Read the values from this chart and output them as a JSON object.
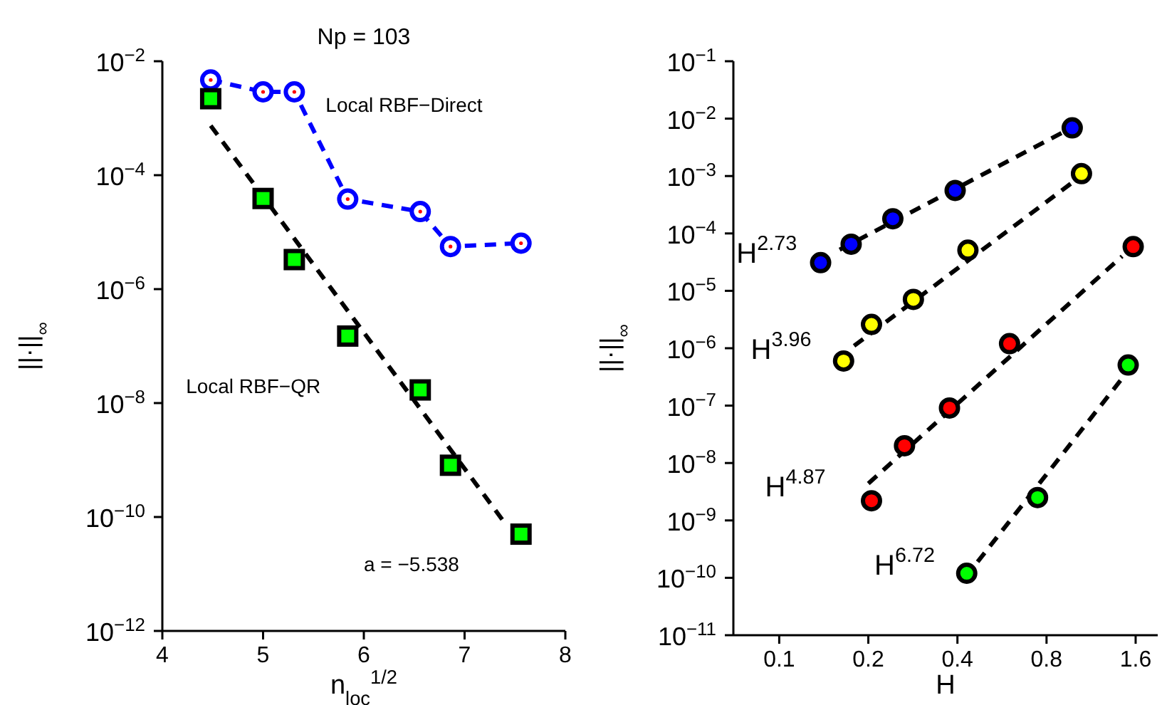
{
  "chart_data": [
    {
      "type": "line",
      "title": "Np = 103",
      "xlabel": "n$_{loc}$$^{1/2}$",
      "ylabel": "||·||$_{∞}$",
      "log": "y",
      "xlim": [
        4,
        8
      ],
      "xticks": [
        4,
        5,
        6,
        7,
        8
      ],
      "ylim": [
        1e-12,
        0.01
      ],
      "yticks": [
        {
          "value": 1e-12,
          "label": "10$^{−12}$"
        },
        {
          "value": 1e-10,
          "label": "10$^{−10}$"
        },
        {
          "value": 1e-08,
          "label": "10$^{−8}$"
        },
        {
          "value": 1e-06,
          "label": "10$^{−6}$"
        },
        {
          "value": 0.0001,
          "label": "10$^{−4}$"
        },
        {
          "value": 0.01,
          "label": "10$^{−2}$"
        }
      ],
      "series": [
        {
          "name": "Local RBF−Direct",
          "color": "#0000ff",
          "marker": "circle",
          "line_style": "dashed",
          "x": [
            4.48,
            5.0,
            5.31,
            5.84,
            6.56,
            6.86,
            7.56
          ],
          "values": [
            0.0047,
            0.0029,
            0.0029,
            3.8e-05,
            2.3e-05,
            5.6e-06,
            6.4e-06
          ]
        },
        {
          "name": "Local RBF−QR",
          "type": "scatter",
          "color": "#00ff00",
          "marker": "square",
          "x": [
            4.48,
            5.0,
            5.31,
            5.84,
            6.56,
            6.86,
            7.56
          ],
          "values": [
            0.0022,
            3.9e-05,
            3.3e-06,
            1.5e-07,
            1.7e-08,
            8.1e-10,
            5e-11
          ]
        },
        {
          "color": "#000000",
          "marker": "none",
          "line_style": "dashed",
          "x": [
            4.48,
            7.41
          ],
          "values": [
            0.00074,
            7.4e-11
          ]
        }
      ],
      "annotations": [
        "a = −5.538"
      ]
    },
    {
      "type": "scatter",
      "xlabel": "H",
      "ylabel": "||·||$_{∞}$",
      "log": "xy",
      "xlim": [
        0.07,
        1.9
      ],
      "xticks": [
        0.1,
        0.2,
        0.4,
        0.8,
        1.6
      ],
      "ylim": [
        1e-11,
        0.1
      ],
      "yticks": [
        {
          "value": 1e-11,
          "label": "10$^{−11}$"
        },
        {
          "value": 1e-10,
          "label": "10$^{−10}$"
        },
        {
          "value": 1e-09,
          "label": "10$^{−9}$"
        },
        {
          "value": 1e-08,
          "label": "10$^{−8}$"
        },
        {
          "value": 1e-07,
          "label": "10$^{−7}$"
        },
        {
          "value": 1e-06,
          "label": "10$^{−6}$"
        },
        {
          "value": 1e-05,
          "label": "10$^{−5}$"
        },
        {
          "value": 0.0001,
          "label": "10$^{−4}$"
        },
        {
          "value": 0.001,
          "label": "10$^{−3}$"
        },
        {
          "value": 0.01,
          "label": "10$^{−2}$"
        },
        {
          "value": 0.1,
          "label": "10$^{−1}$"
        }
      ],
      "series": [
        {
          "name": "H$^{2.73}$",
          "type": "line",
          "color": "#000000",
          "marker": "none",
          "line_style": "dashed",
          "x": [
            0.16,
            0.91
          ],
          "values": [
            5.2e-05,
            0.0058
          ]
        },
        {
          "name": "H$^{3.96}$",
          "type": "line",
          "color": "#000000",
          "marker": "none",
          "line_style": "dashed",
          "x": [
            0.179,
            0.977
          ],
          "values": [
            1.1e-06,
            0.00077
          ]
        },
        {
          "name": "H$^{4.87}$",
          "type": "line",
          "color": "#000000",
          "marker": "none",
          "line_style": "dashed",
          "x": [
            0.2,
            1.44
          ],
          "values": [
            4.4e-09,
            4e-05
          ]
        },
        {
          "name": "H$^{6.72}$",
          "type": "line",
          "color": "#000000",
          "marker": "none",
          "line_style": "dashed",
          "x": [
            0.468,
            1.47
          ],
          "values": [
            1.9e-10,
            3.4e-07
          ]
        },
        {
          "color": "#0000ff",
          "marker": "circle",
          "x": [
            0.138,
            0.175,
            0.242,
            0.393,
            0.977
          ],
          "values": [
            3.1e-05,
            6.5e-05,
            0.00018,
            0.00056,
            0.0069
          ]
        },
        {
          "color": "#ffff00",
          "marker": "circle",
          "x": [
            0.165,
            0.205,
            0.284,
            0.434,
            1.05
          ],
          "values": [
            6e-07,
            2.6e-06,
            7.1e-06,
            5.1e-05,
            0.0011
          ]
        },
        {
          "color": "#ff0000",
          "marker": "circle",
          "x": [
            0.205,
            0.265,
            0.376,
            0.6,
            1.57
          ],
          "values": [
            2.2e-09,
            2e-08,
            9.1e-08,
            1.2e-06,
            5.9e-05
          ]
        },
        {
          "color": "#00ff00",
          "marker": "circle",
          "x": [
            0.43,
            0.746,
            1.51
          ],
          "values": [
            1.2e-10,
            2.5e-09,
            5.1e-07
          ]
        }
      ]
    }
  ]
}
